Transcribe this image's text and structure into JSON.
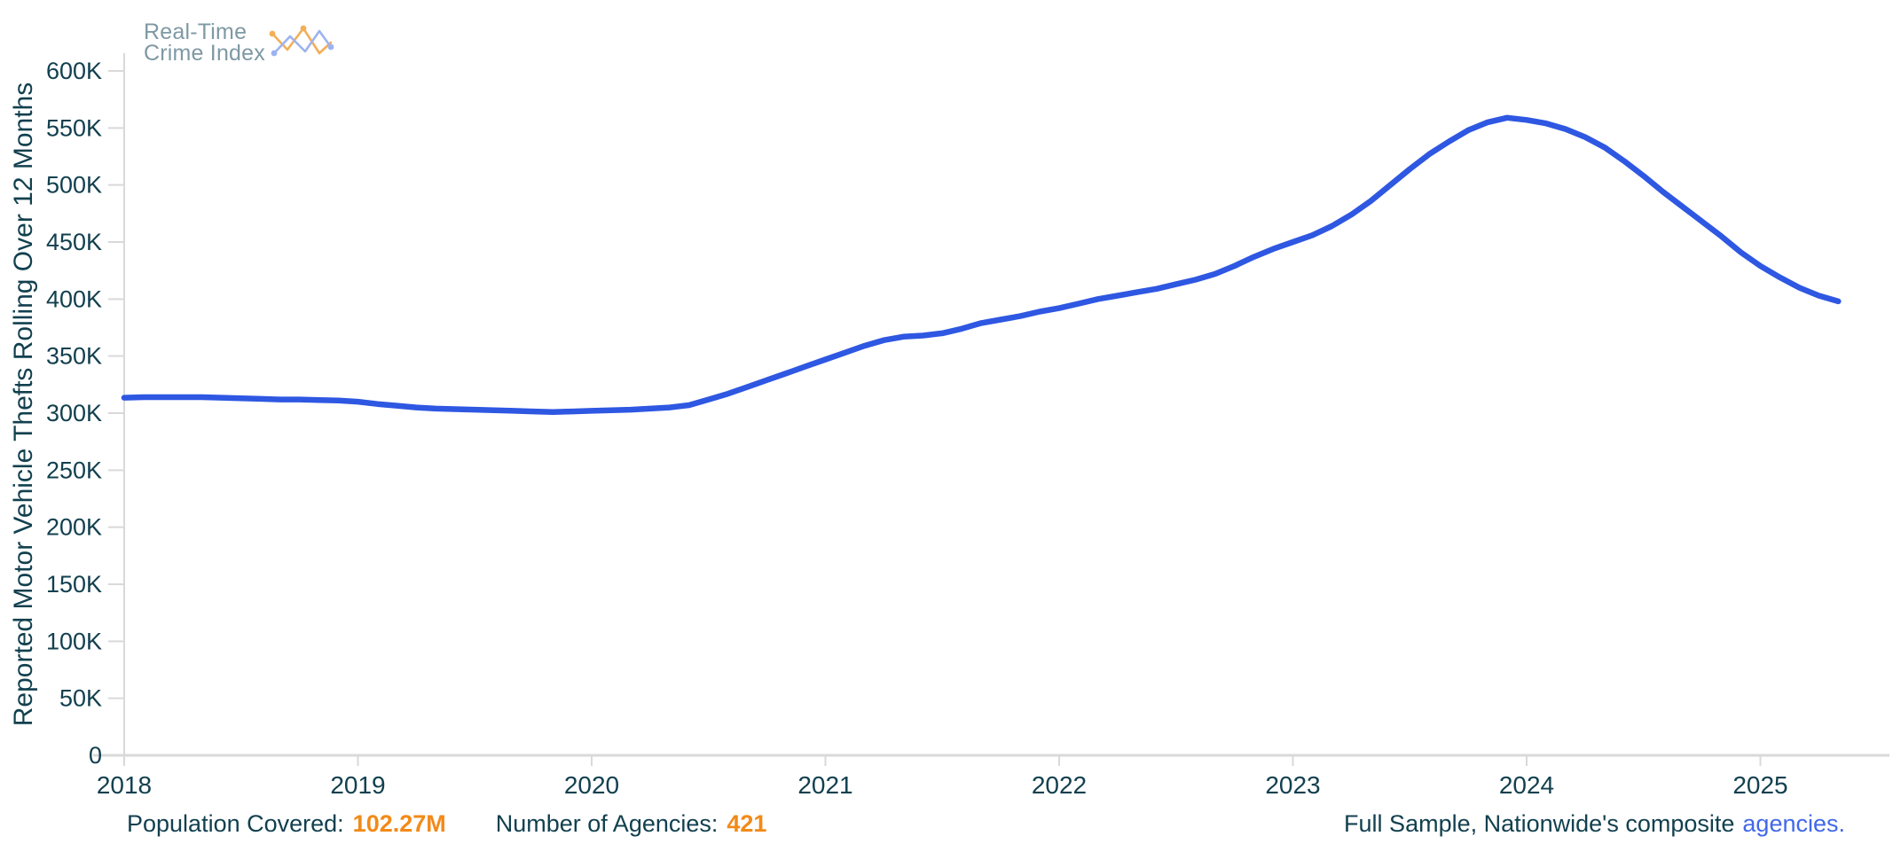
{
  "logo": {
    "line1": "Real-Time",
    "line2": "Crime Index"
  },
  "chart_data": {
    "type": "line",
    "title": "",
    "xlabel": "",
    "ylabel": "Reported Motor Vehicle Thefts Rolling Over 12 Months",
    "ylim": [
      0,
      600000
    ],
    "y_tick_step": 50000,
    "y_tick_labels": [
      "0",
      "50K",
      "100K",
      "150K",
      "200K",
      "250K",
      "300K",
      "350K",
      "400K",
      "450K",
      "500K",
      "550K",
      "600K"
    ],
    "x_tick_labels": [
      "2018",
      "2019",
      "2020",
      "2021",
      "2022",
      "2023",
      "2024",
      "2025"
    ],
    "grid": false,
    "legend_position": "none",
    "series": [
      {
        "name": "Reported Motor Vehicle Thefts Rolling Over 12 Months",
        "frequency": "monthly",
        "start": "2018-01",
        "end": "2025-05",
        "values": [
          313500,
          314000,
          314000,
          314000,
          314000,
          313500,
          313000,
          312500,
          312000,
          312000,
          311500,
          311000,
          310000,
          308000,
          306500,
          305000,
          304000,
          303500,
          303000,
          302500,
          302000,
          301500,
          301000,
          301500,
          302000,
          302500,
          303000,
          304000,
          305000,
          307000,
          312000,
          317000,
          323000,
          329000,
          335000,
          341000,
          347000,
          353000,
          359000,
          364000,
          367000,
          368000,
          370000,
          374000,
          379000,
          382000,
          385000,
          389000,
          392000,
          396000,
          400000,
          403000,
          406000,
          409000,
          413000,
          417000,
          422000,
          429000,
          437000,
          444000,
          450000,
          456000,
          464000,
          474000,
          486000,
          500000,
          514000,
          527000,
          538000,
          548000,
          555000,
          559000,
          557000,
          554000,
          549000,
          542000,
          533000,
          521000,
          508000,
          494000,
          481000,
          468000,
          455000,
          441000,
          429000,
          419000,
          410000,
          403000,
          398000
        ]
      }
    ],
    "annotations": {
      "peak_value": 559000,
      "peak_period": "2023-12",
      "last_value": 398000
    }
  },
  "colors": {
    "line": "#2e57e2",
    "axis": "#d9d9d9",
    "text": "#12404f",
    "accent_orange": "#f28a18",
    "link_blue": "#4168e8",
    "logo_text": "#7e99a4",
    "logo_orange": "#f3ae57",
    "logo_blue": "#9db3f0"
  },
  "footer": {
    "population_label": "Population Covered:",
    "population_value": "102.27M",
    "agencies_label": "Number of Agencies:",
    "agencies_value": "421",
    "sample_text": "Full Sample, Nationwide's composite",
    "sample_link": "agencies."
  }
}
